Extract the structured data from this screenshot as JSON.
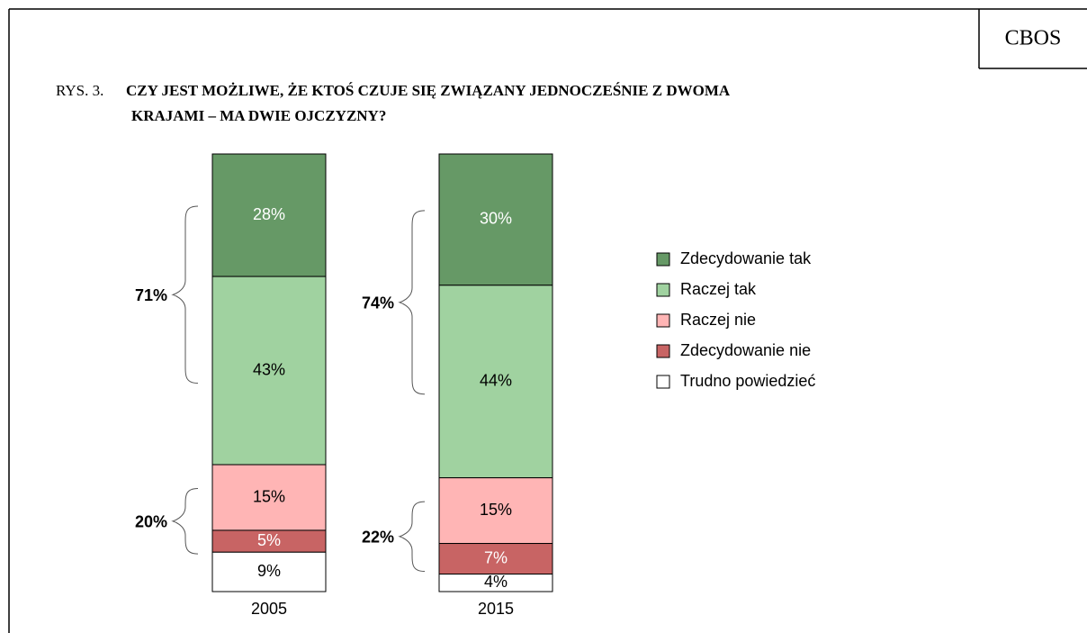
{
  "header": {
    "badge": "CBOS"
  },
  "chart_data": {
    "type": "stacked_bar",
    "figure_label": "RYS. 3.",
    "title": [
      "CZY JEST MOŻLIWE, ŻE KTOŚ CZUJE SIĘ ZWIĄZANY JEDNOCZEŚNIE Z DWOMA",
      "KRAJAMI – MA DWIE OJCZYZNY?"
    ],
    "categories": [
      "2005",
      "2015"
    ],
    "series": [
      {
        "name": "Zdecydowanie tak",
        "color": "#669966",
        "label_color": "#ffffff",
        "values": [
          28,
          30
        ],
        "value_labels": [
          "28%",
          "30%"
        ]
      },
      {
        "name": "Raczej tak",
        "color": "#a0d2a0",
        "label_color": "#000000",
        "values": [
          43,
          44
        ],
        "value_labels": [
          "43%",
          "44%"
        ]
      },
      {
        "name": "Raczej nie",
        "color": "#ffb5b5",
        "label_color": "#000000",
        "values": [
          15,
          15
        ],
        "value_labels": [
          "15%",
          "15%"
        ]
      },
      {
        "name": "Zdecydowanie nie",
        "color": "#c86464",
        "label_color": "#ffffff",
        "values": [
          5,
          7
        ],
        "value_labels": [
          "5%",
          "7%"
        ]
      },
      {
        "name": "Trudno powiedzieć",
        "color": "#ffffff",
        "label_color": "#000000",
        "values": [
          9,
          4
        ],
        "value_labels": [
          "9%",
          "4%"
        ]
      }
    ],
    "annotations": [
      [
        "71%",
        "20%"
      ],
      [
        "74%",
        "22%"
      ]
    ]
  }
}
